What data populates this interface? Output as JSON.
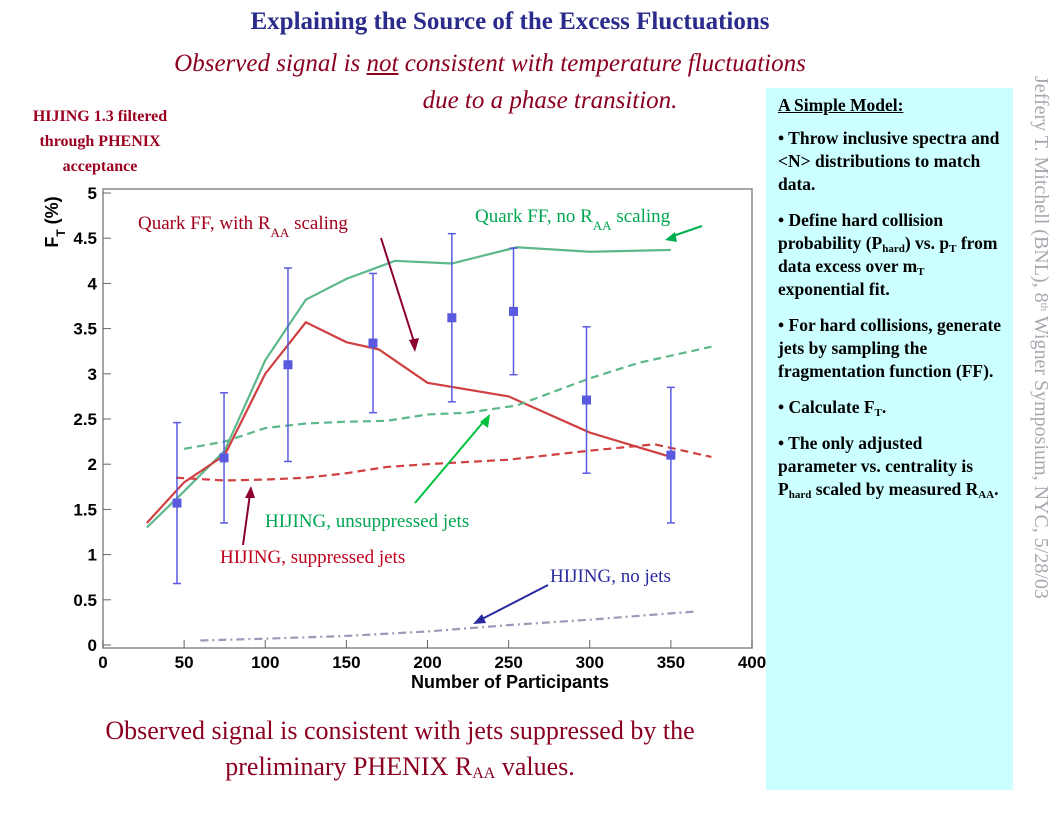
{
  "title": "Explaining the Source of the Excess Fluctuations",
  "subtitle": {
    "line1": [
      "Observed signal is ",
      "not",
      " consistent with temperature fluctuations"
    ],
    "line2": "due to a phase transition."
  },
  "note": [
    "HIJING 1.3 filtered",
    "through PHENIX",
    "acceptance"
  ],
  "chart_data": {
    "type": "line",
    "xlabel": "Number of Participants",
    "ylabel": [
      "F",
      "T",
      " (%)"
    ],
    "xlim": [
      0,
      400
    ],
    "xticks": [
      0,
      50,
      100,
      150,
      200,
      250,
      300,
      350,
      400
    ],
    "ylim": [
      0,
      5
    ],
    "yticks": [
      0,
      0.5,
      1,
      1.5,
      2,
      2.5,
      3,
      3.5,
      4,
      4.5,
      5
    ],
    "grid": false,
    "series": [
      {
        "label": [
          "Quark FF, no R",
          "AA",
          " scaling"
        ],
        "color": "#5cb88a",
        "label_color": "#00a651",
        "style": "solid",
        "x": [
          27,
          50,
          75,
          100,
          125,
          150,
          180,
          215,
          255,
          300,
          350
        ],
        "values": [
          1.3,
          1.7,
          2.15,
          3.15,
          3.82,
          4.05,
          4.25,
          4.22,
          4.4,
          4.35,
          4.37
        ]
      },
      {
        "label": [
          "Quark FF, with R",
          "AA",
          " scaling"
        ],
        "color": "#d04040",
        "label_color": "#a0001c",
        "style": "solid",
        "x": [
          27,
          50,
          75,
          100,
          125,
          150,
          170,
          200,
          250,
          300,
          350
        ],
        "values": [
          1.35,
          1.8,
          2.1,
          3.0,
          3.57,
          3.35,
          3.27,
          2.9,
          2.75,
          2.35,
          2.08
        ]
      },
      {
        "label": [
          "HIJING, unsuppressed jets"
        ],
        "color": "#5cb88a",
        "label_color": "#00a651",
        "style": "dashed",
        "x": [
          50,
          75,
          100,
          125,
          150,
          175,
          200,
          225,
          255,
          300,
          330,
          375
        ],
        "values": [
          2.17,
          2.25,
          2.4,
          2.45,
          2.47,
          2.48,
          2.55,
          2.57,
          2.65,
          2.95,
          3.12,
          3.3
        ]
      },
      {
        "label": [
          "HIJING, suppressed jets"
        ],
        "color": "#d04040",
        "label_color": "#c0001c",
        "style": "dashed",
        "x": [
          45,
          75,
          100,
          125,
          150,
          175,
          200,
          250,
          300,
          340,
          375
        ],
        "values": [
          1.85,
          1.82,
          1.83,
          1.85,
          1.9,
          1.97,
          2.0,
          2.05,
          2.15,
          2.22,
          2.08
        ]
      },
      {
        "label": [
          "HIJING, no jets"
        ],
        "color": "#9a9ab8",
        "label_color": "#2a2aa0",
        "style": "dashdot",
        "x": [
          60,
          100,
          150,
          200,
          250,
          300,
          350,
          365
        ],
        "values": [
          0.05,
          0.07,
          0.1,
          0.15,
          0.22,
          0.28,
          0.35,
          0.37
        ]
      }
    ],
    "measured": {
      "color": "#5a5ae0",
      "x": [
        45.6,
        74.6,
        114,
        166.4,
        215,
        253,
        298,
        350
      ],
      "values": [
        1.57,
        2.07,
        3.1,
        3.34,
        3.62,
        3.69,
        2.71,
        2.1
      ],
      "errors": [
        0.89,
        0.72,
        1.07,
        0.77,
        0.93,
        0.7,
        0.81,
        0.75
      ]
    }
  },
  "model": {
    "heading": "A Simple Model:",
    "bullets": [
      [
        "• Throw inclusive spectra and <N> distributions to match data."
      ],
      [
        "• Define hard collision probability (P",
        "hard",
        ") vs. p",
        "T",
        " from data excess over m",
        "T",
        " exponential fit."
      ],
      [
        "• For hard collisions, generate jets by sampling the fragmentation function (FF)."
      ],
      [
        "• Calculate F",
        "T",
        "."
      ],
      [
        "• The only adjusted parameter vs. centrality is P",
        "hard",
        " scaled by measured R",
        "AA",
        "."
      ]
    ]
  },
  "conclusion": {
    "line1": "Observed signal is consistent with jets suppressed by the",
    "line2": [
      "preliminary PHENIX R",
      "AA",
      " values."
    ]
  },
  "credit": [
    "Jeffery T. Mitchell (BNL), 8",
    "th",
    " Wigner Symposium, NYC, 5/28/03"
  ]
}
